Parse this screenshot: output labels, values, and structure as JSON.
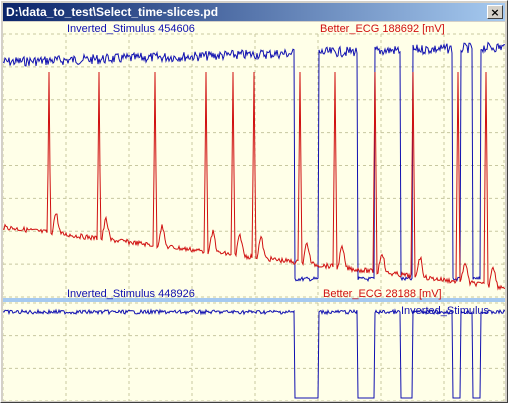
{
  "window": {
    "title": "D:\\data_to_test\\Select_time-slices.pd",
    "close_glyph": "×"
  },
  "colors": {
    "stimulus": "#1010b0",
    "ecg": "#d01010",
    "background": "#ffffe8",
    "grid": "#c8c8a0",
    "separator": "#a6caf0"
  },
  "top_panel": {
    "stimulus_label": "Inverted_Stimulus 454606",
    "ecg_label": "Better_ECG 188692 [mV]"
  },
  "bottom_panel": {
    "stimulus_label": "Inverted_Stimulus 448926",
    "ecg_label": "Better_ECG 28188 [mV]",
    "overlap_label": "Inverted_Stimulus"
  }
}
